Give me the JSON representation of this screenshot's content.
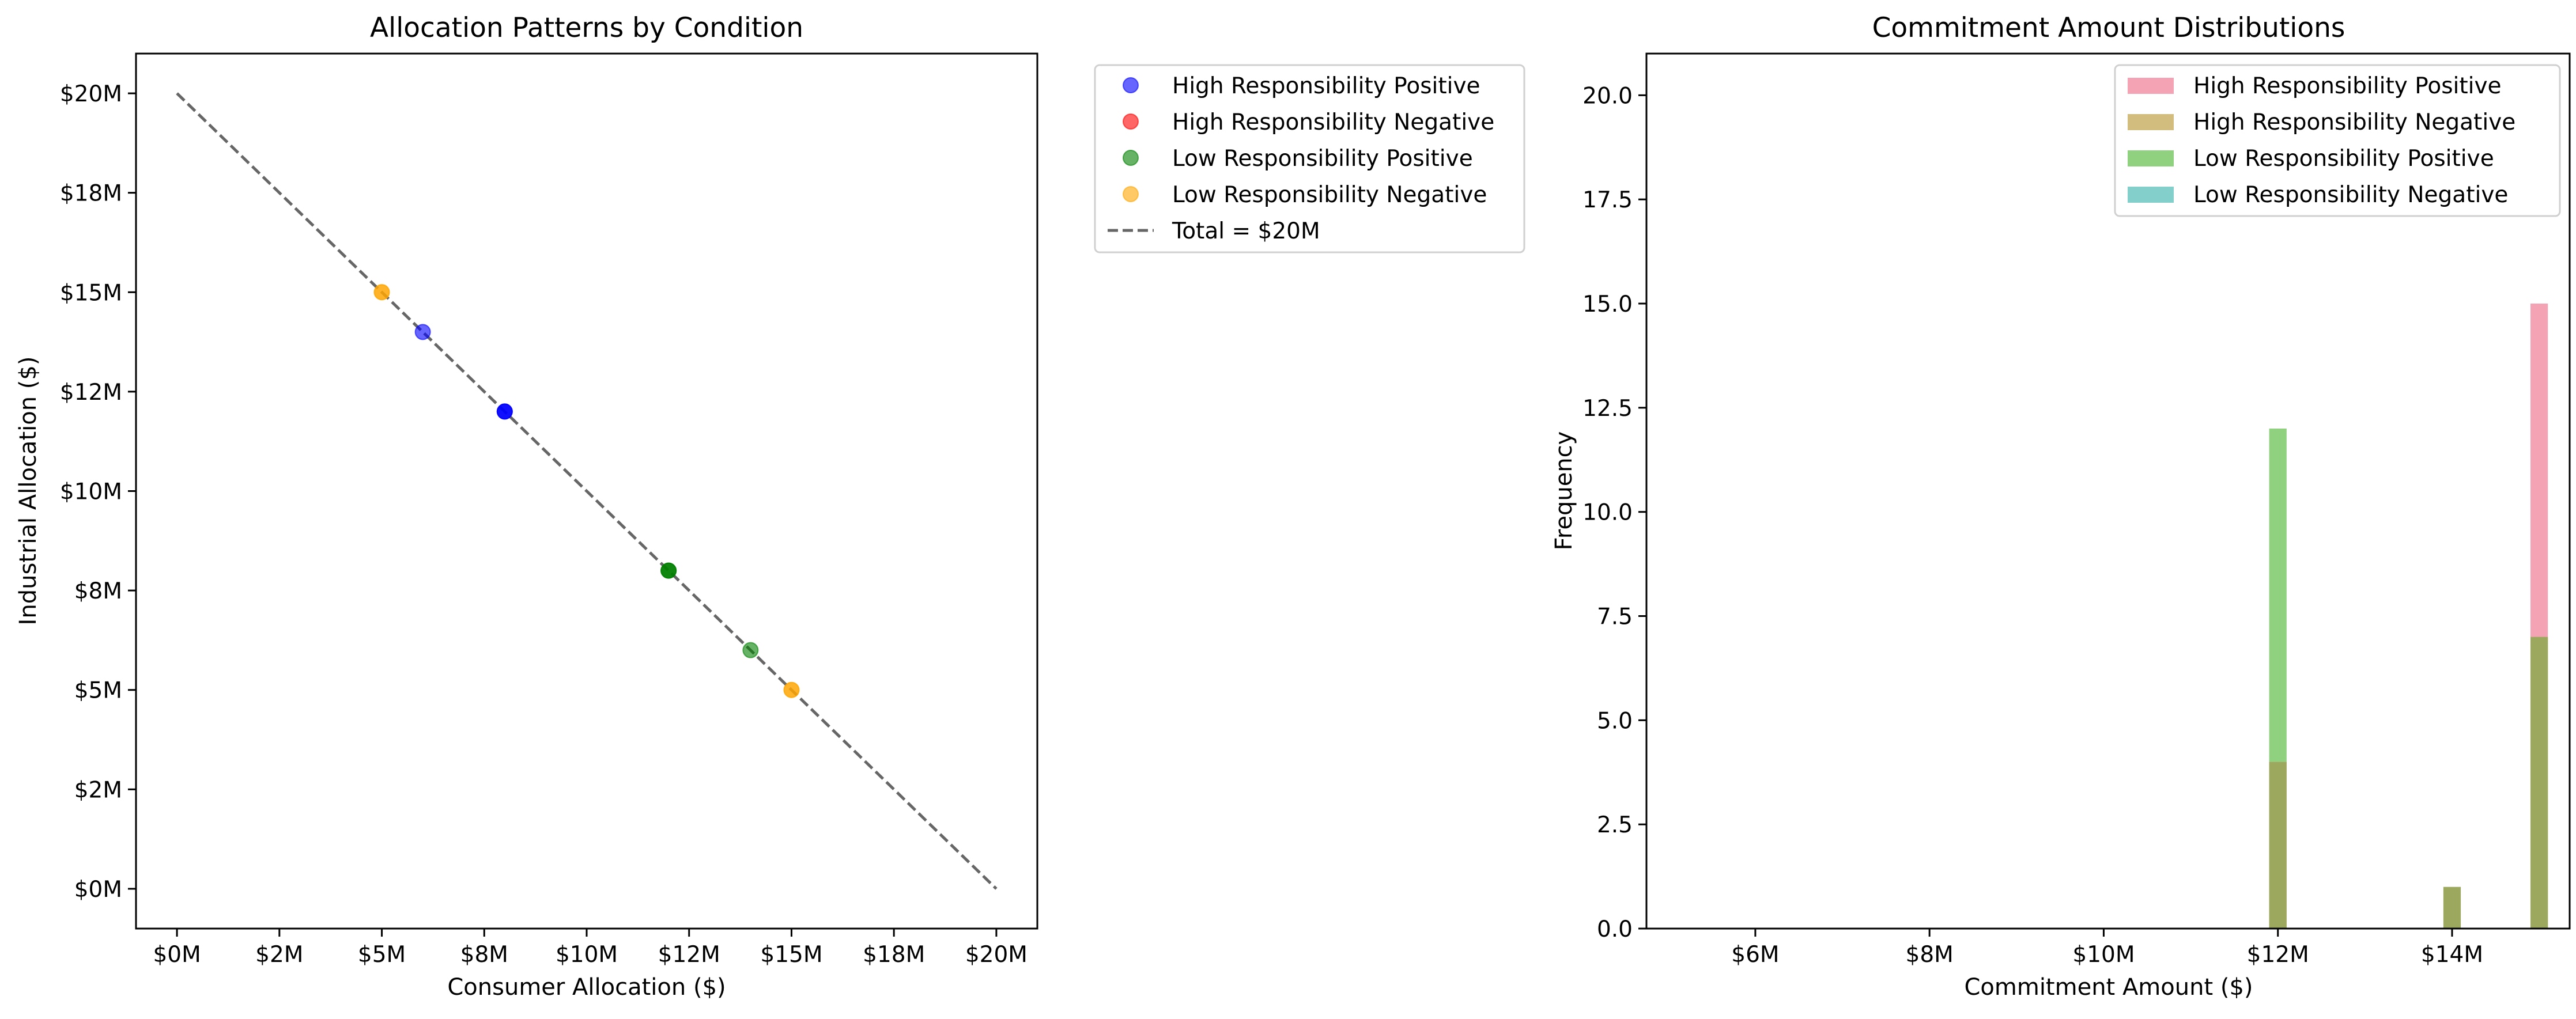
{
  "figure": {
    "background": "#ffffff"
  },
  "chart_data": [
    {
      "type": "scatter",
      "title": "Allocation Patterns by Condition",
      "xlabel": "Consumer Allocation ($)",
      "ylabel": "Industrial Allocation ($)",
      "xlim": [
        -1,
        21
      ],
      "ylim": [
        -1,
        21
      ],
      "x_ticks": [
        0,
        2.5,
        5,
        7.5,
        10,
        12.5,
        15,
        17.5,
        20
      ],
      "x_tick_labels": [
        "$0M",
        "$2M",
        "$5M",
        "$8M",
        "$10M",
        "$12M",
        "$15M",
        "$18M",
        "$20M"
      ],
      "y_ticks": [
        0,
        2.5,
        5,
        7.5,
        10,
        12.5,
        15,
        17.5,
        20
      ],
      "y_tick_labels": [
        "$0M",
        "$2M",
        "$5M",
        "$8M",
        "$10M",
        "$12M",
        "$15M",
        "$18M",
        "$20M"
      ],
      "grid": false,
      "legend_position": "outside-right-top",
      "series": [
        {
          "name": "High Responsibility Positive",
          "color": "#0000ff",
          "alpha": 0.6,
          "points": [
            {
              "x": 6,
              "y": 14
            },
            {
              "x": 8,
              "y": 12
            },
            {
              "x": 8,
              "y": 12
            },
            {
              "x": 8,
              "y": 12
            }
          ]
        },
        {
          "name": "High Responsibility Negative",
          "color": "#ff0000",
          "alpha": 0.6,
          "points": []
        },
        {
          "name": "Low Responsibility Positive",
          "color": "#008000",
          "alpha": 0.6,
          "points": [
            {
              "x": 12,
              "y": 8
            },
            {
              "x": 12,
              "y": 8
            },
            {
              "x": 12,
              "y": 8
            },
            {
              "x": 14,
              "y": 6
            }
          ]
        },
        {
          "name": "Low Responsibility Negative",
          "color": "#ffa500",
          "alpha": 0.6,
          "points": [
            {
              "x": 5,
              "y": 15
            },
            {
              "x": 5,
              "y": 15
            },
            {
              "x": 15,
              "y": 5
            },
            {
              "x": 15,
              "y": 5
            }
          ]
        }
      ],
      "reference_line": {
        "name": "Total = $20M",
        "color": "#666666",
        "style": "dashed",
        "from": {
          "x": 0,
          "y": 20
        },
        "to": {
          "x": 20,
          "y": 0
        }
      }
    },
    {
      "type": "histogram",
      "title": "Commitment Amount Distributions",
      "xlabel": "Commitment Amount ($)",
      "ylabel": "Frequency",
      "xlim": [
        4.75,
        15.35
      ],
      "ylim": [
        0,
        21
      ],
      "x_ticks": [
        6,
        8,
        10,
        12,
        14
      ],
      "x_tick_labels": [
        "$6M",
        "$8M",
        "$10M",
        "$12M",
        "$14M"
      ],
      "y_ticks": [
        0,
        2.5,
        5,
        7.5,
        10,
        12.5,
        15,
        17.5,
        20
      ],
      "y_tick_labels": [
        "0.0",
        "2.5",
        "5.0",
        "7.5",
        "10.0",
        "12.5",
        "15.0",
        "17.5",
        "20.0"
      ],
      "grid": false,
      "legend_position": "upper-right",
      "bin_width": 0.2,
      "series": [
        {
          "name": "High Responsibility Positive",
          "color": "#f4a3b5",
          "bins": [
            {
              "x": 15,
              "count": 15
            }
          ]
        },
        {
          "name": "High Responsibility Negative",
          "color": "#d2bd7e",
          "bins": [
            {
              "x": 12,
              "count": 4
            },
            {
              "x": 14,
              "count": 1
            },
            {
              "x": 15,
              "count": 7
            }
          ]
        },
        {
          "name": "Low Responsibility Positive",
          "color": "#8fd17e",
          "bins": [
            {
              "x": 12,
              "count": 12
            }
          ]
        },
        {
          "name": "Low Responsibility Negative",
          "color": "#82cfcc",
          "bins": []
        }
      ],
      "overlap_color": "#9da85f"
    }
  ]
}
